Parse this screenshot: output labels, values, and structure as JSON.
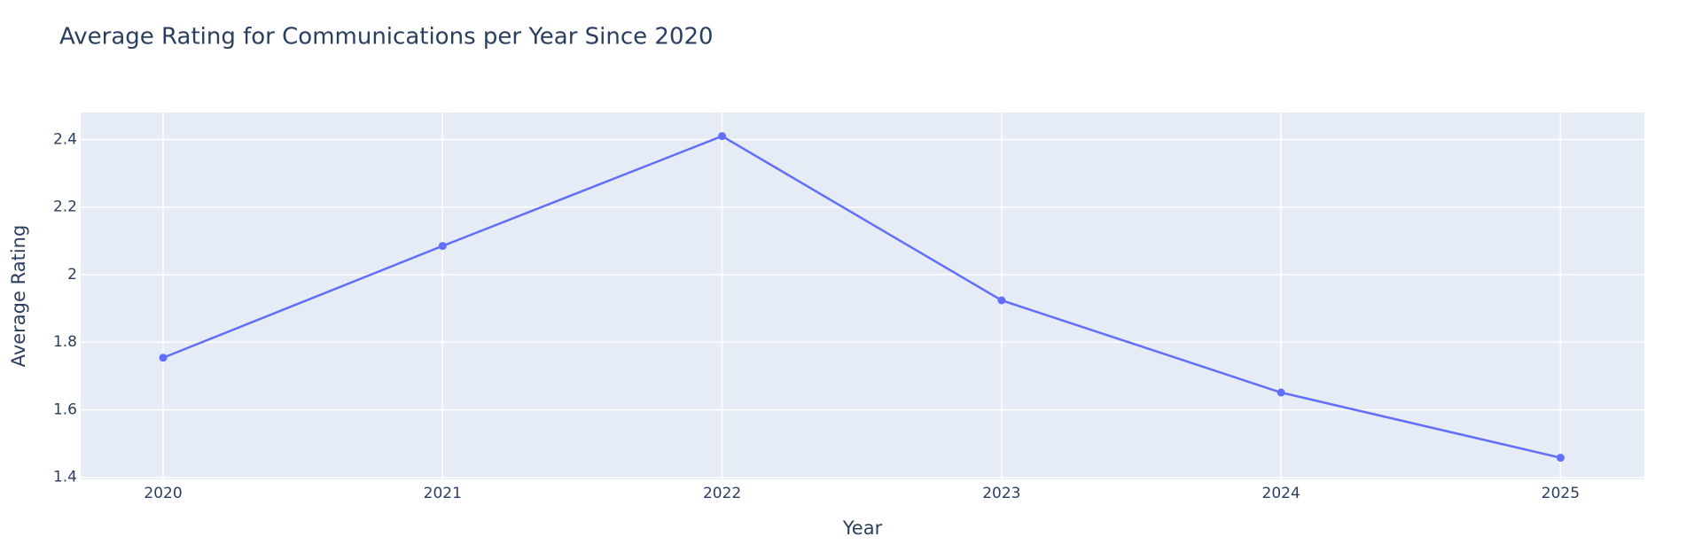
{
  "chart_data": {
    "type": "line",
    "title": "Average Rating for Communications per Year Since 2020",
    "x_label": "Year",
    "y_label": "Average Rating",
    "x": [
      2020,
      2021,
      2022,
      2023,
      2024,
      2025
    ],
    "series": [
      {
        "name": "Average Rating",
        "color": "#636efa",
        "values": [
          1.754,
          2.085,
          2.41,
          1.924,
          1.651,
          1.458
        ]
      }
    ],
    "xlim": [
      2019.705,
      2025.3
    ],
    "xticks": [
      2020,
      2021,
      2022,
      2023,
      2024,
      2025
    ],
    "ylim": [
      1.394,
      2.48
    ],
    "yticks": [
      1.4,
      1.6,
      1.8,
      2,
      2.2,
      2.4
    ],
    "grid": true,
    "plot_background": "#e5ecf6"
  }
}
